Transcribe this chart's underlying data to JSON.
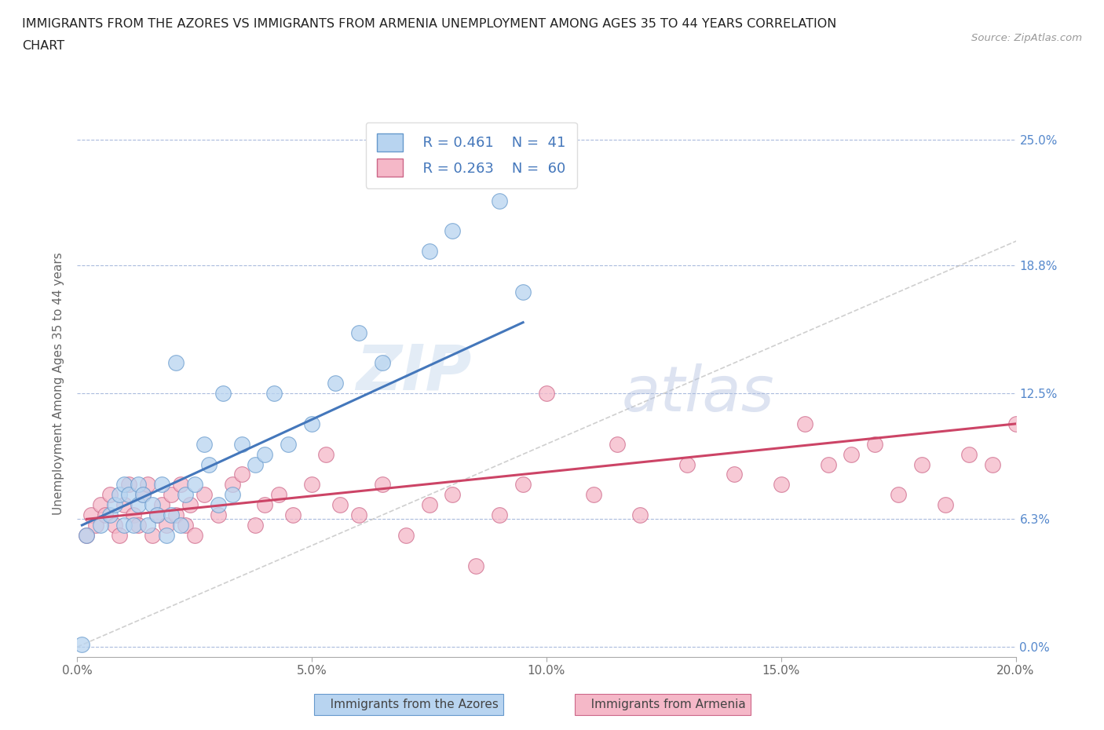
{
  "title_line1": "IMMIGRANTS FROM THE AZORES VS IMMIGRANTS FROM ARMENIA UNEMPLOYMENT AMONG AGES 35 TO 44 YEARS CORRELATION",
  "title_line2": "CHART",
  "source": "Source: ZipAtlas.com",
  "ylabel": "Unemployment Among Ages 35 to 44 years",
  "xlim": [
    0.0,
    0.2
  ],
  "ylim": [
    -0.005,
    0.265
  ],
  "yticks": [
    0.0,
    0.063,
    0.125,
    0.188,
    0.25
  ],
  "ytick_labels": [
    "0.0%",
    "6.3%",
    "12.5%",
    "18.8%",
    "25.0%"
  ],
  "xticks": [
    0.0,
    0.05,
    0.1,
    0.15,
    0.2
  ],
  "xtick_labels": [
    "0.0%",
    "5.0%",
    "10.0%",
    "15.0%",
    "20.0%"
  ],
  "azores_fill_color": "#b8d4f0",
  "azores_edge_color": "#6699cc",
  "armenia_fill_color": "#f5b8c8",
  "armenia_edge_color": "#cc6688",
  "azores_line_color": "#4477bb",
  "armenia_line_color": "#cc4466",
  "diagonal_color": "#bbbbbb",
  "tick_label_color": "#5588cc",
  "legend_R_azores": "R = 0.461",
  "legend_N_azores": "N =  41",
  "legend_R_armenia": "R = 0.263",
  "legend_N_armenia": "N =  60",
  "watermark_zip": "ZIP",
  "watermark_atlas": "atlas",
  "azores_scatter_x": [
    0.001,
    0.002,
    0.005,
    0.007,
    0.008,
    0.009,
    0.01,
    0.01,
    0.011,
    0.012,
    0.013,
    0.013,
    0.014,
    0.015,
    0.016,
    0.017,
    0.018,
    0.019,
    0.02,
    0.021,
    0.022,
    0.023,
    0.025,
    0.027,
    0.028,
    0.03,
    0.031,
    0.033,
    0.035,
    0.038,
    0.04,
    0.042,
    0.045,
    0.05,
    0.055,
    0.06,
    0.065,
    0.075,
    0.08,
    0.09,
    0.095
  ],
  "azores_scatter_y": [
    0.001,
    0.055,
    0.06,
    0.065,
    0.07,
    0.075,
    0.06,
    0.08,
    0.075,
    0.06,
    0.07,
    0.08,
    0.075,
    0.06,
    0.07,
    0.065,
    0.08,
    0.055,
    0.065,
    0.14,
    0.06,
    0.075,
    0.08,
    0.1,
    0.09,
    0.07,
    0.125,
    0.075,
    0.1,
    0.09,
    0.095,
    0.125,
    0.1,
    0.11,
    0.13,
    0.155,
    0.14,
    0.195,
    0.205,
    0.22,
    0.175
  ],
  "armenia_scatter_x": [
    0.002,
    0.003,
    0.004,
    0.005,
    0.006,
    0.007,
    0.008,
    0.009,
    0.01,
    0.011,
    0.012,
    0.013,
    0.014,
    0.015,
    0.016,
    0.017,
    0.018,
    0.019,
    0.02,
    0.021,
    0.022,
    0.023,
    0.024,
    0.025,
    0.027,
    0.03,
    0.033,
    0.035,
    0.038,
    0.04,
    0.043,
    0.046,
    0.05,
    0.053,
    0.056,
    0.06,
    0.065,
    0.07,
    0.075,
    0.08,
    0.085,
    0.09,
    0.095,
    0.1,
    0.11,
    0.115,
    0.12,
    0.13,
    0.14,
    0.15,
    0.155,
    0.16,
    0.165,
    0.17,
    0.175,
    0.18,
    0.185,
    0.19,
    0.195,
    0.2
  ],
  "armenia_scatter_y": [
    0.055,
    0.065,
    0.06,
    0.07,
    0.065,
    0.075,
    0.06,
    0.055,
    0.07,
    0.08,
    0.065,
    0.06,
    0.075,
    0.08,
    0.055,
    0.065,
    0.07,
    0.06,
    0.075,
    0.065,
    0.08,
    0.06,
    0.07,
    0.055,
    0.075,
    0.065,
    0.08,
    0.085,
    0.06,
    0.07,
    0.075,
    0.065,
    0.08,
    0.095,
    0.07,
    0.065,
    0.08,
    0.055,
    0.07,
    0.075,
    0.04,
    0.065,
    0.08,
    0.125,
    0.075,
    0.1,
    0.065,
    0.09,
    0.085,
    0.08,
    0.11,
    0.09,
    0.095,
    0.1,
    0.075,
    0.09,
    0.07,
    0.095,
    0.09,
    0.11
  ],
  "azores_line_x": [
    0.001,
    0.095
  ],
  "azores_line_y": [
    0.06,
    0.16
  ],
  "armenia_line_x": [
    0.002,
    0.2
  ],
  "armenia_line_y": [
    0.063,
    0.11
  ]
}
